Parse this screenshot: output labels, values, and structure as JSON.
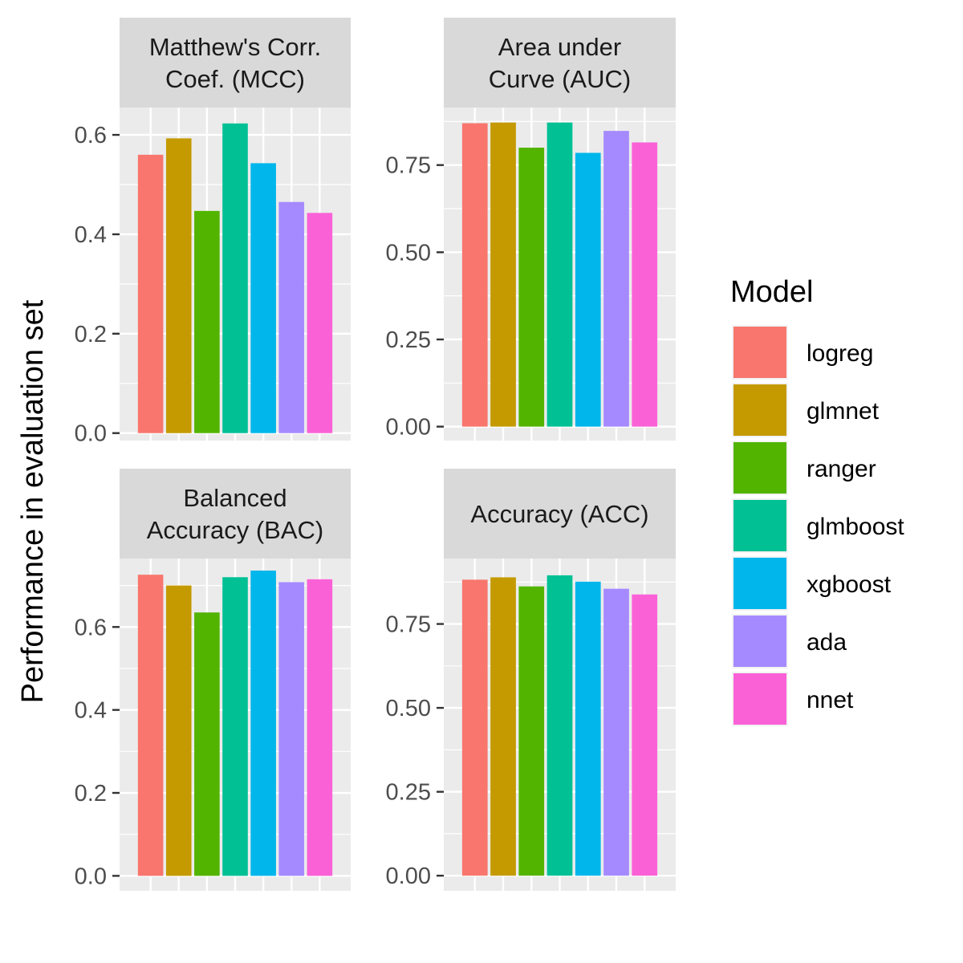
{
  "chart_data": {
    "type": "bar",
    "ylabel": "Performance in evaluation set",
    "xlabel": "",
    "legend": {
      "title": "Model",
      "position": "right",
      "entries": [
        {
          "name": "logreg",
          "color": "#F8766D"
        },
        {
          "name": "glmnet",
          "color": "#C49A00"
        },
        {
          "name": "ranger",
          "color": "#53B400"
        },
        {
          "name": "glmboost",
          "color": "#00C094"
        },
        {
          "name": "xgboost",
          "color": "#00B6EB"
        },
        {
          "name": "ada",
          "color": "#A58AFF"
        },
        {
          "name": "nnet",
          "color": "#FB61D7"
        }
      ]
    },
    "panels": [
      {
        "title_lines": [
          "Matthew's Corr.",
          "Coef. (MCC)"
        ],
        "ylim": [
          -0.015,
          0.655
        ],
        "yticks": [
          0.0,
          0.2,
          0.4,
          0.6
        ],
        "ytick_labels": [
          "0.0",
          "0.2",
          "0.4",
          "0.6"
        ],
        "categories": [
          "logreg",
          "glmnet",
          "ranger",
          "glmboost",
          "xgboost",
          "ada",
          "nnet"
        ],
        "values": [
          0.56,
          0.593,
          0.447,
          0.623,
          0.543,
          0.465,
          0.443
        ]
      },
      {
        "title_lines": [
          "Area under",
          "Curve (AUC)"
        ],
        "ylim": [
          -0.04,
          0.915
        ],
        "yticks": [
          0.0,
          0.25,
          0.5,
          0.75
        ],
        "ytick_labels": [
          "0.00",
          "0.25",
          "0.50",
          "0.75"
        ],
        "categories": [
          "logreg",
          "glmnet",
          "ranger",
          "glmboost",
          "xgboost",
          "ada",
          "nnet"
        ],
        "values": [
          0.87,
          0.872,
          0.8,
          0.872,
          0.785,
          0.848,
          0.815
        ]
      },
      {
        "title_lines": [
          "Balanced",
          "Accuracy (BAC)"
        ],
        "ylim": [
          -0.036,
          0.765
        ],
        "yticks": [
          0.0,
          0.2,
          0.4,
          0.6
        ],
        "ytick_labels": [
          "0.0",
          "0.2",
          "0.4",
          "0.6"
        ],
        "categories": [
          "logreg",
          "glmnet",
          "ranger",
          "glmboost",
          "xgboost",
          "ada",
          "nnet"
        ],
        "values": [
          0.726,
          0.7,
          0.635,
          0.72,
          0.736,
          0.708,
          0.715
        ]
      },
      {
        "title_lines": [
          "Accuracy (ACC)"
        ],
        "ylim": [
          -0.045,
          0.945
        ],
        "yticks": [
          0.0,
          0.25,
          0.5,
          0.75
        ],
        "ytick_labels": [
          "0.00",
          "0.25",
          "0.50",
          "0.75"
        ],
        "categories": [
          "logreg",
          "glmnet",
          "ranger",
          "glmboost",
          "xgboost",
          "ada",
          "nnet"
        ],
        "values": [
          0.882,
          0.889,
          0.862,
          0.895,
          0.876,
          0.855,
          0.838
        ]
      }
    ]
  }
}
